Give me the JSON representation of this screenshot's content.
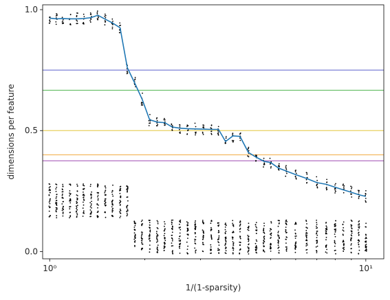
{
  "chart_data": {
    "type": "line",
    "title": "",
    "xlabel": "1/(1-sparsity)",
    "ylabel": "dimensions per feature",
    "xscale": "log",
    "xlim": [
      0.95,
      11.4
    ],
    "ylim": [
      -0.03,
      1.02
    ],
    "grid": false,
    "legend": "none",
    "x_ticks": [
      {
        "value": 1,
        "label": "10⁰"
      },
      {
        "value": 10,
        "label": "10¹"
      }
    ],
    "y_ticks": [
      {
        "value": 0.0,
        "label": "0.0"
      },
      {
        "value": 0.5,
        "label": "0.5"
      },
      {
        "value": 1.0,
        "label": "1.0"
      }
    ],
    "hlines": [
      {
        "y": 0.75,
        "color": "#7b7fd6"
      },
      {
        "y": 0.6667,
        "color": "#6cc06c"
      },
      {
        "y": 0.5,
        "color": "#e8d060"
      },
      {
        "y": 0.4,
        "color": "#f4b860"
      },
      {
        "y": 0.375,
        "color": "#b06cc0"
      }
    ],
    "series": [
      {
        "color": "#1f77b4",
        "x": [
          1.0,
          1.05,
          1.1,
          1.16,
          1.22,
          1.28,
          1.35,
          1.42,
          1.5,
          1.58,
          1.67,
          1.76,
          1.86,
          1.96,
          2.07,
          2.19,
          2.31,
          2.44,
          2.58,
          2.73,
          2.89,
          3.06,
          3.24,
          3.42,
          3.6,
          3.8,
          4.0,
          4.25,
          4.5,
          4.76,
          5.0,
          5.3,
          5.6,
          6.0,
          6.5,
          7.0,
          7.5,
          8.0,
          8.5,
          9.0,
          9.5,
          10.0
        ],
        "y": [
          0.965,
          0.962,
          0.963,
          0.962,
          0.962,
          0.963,
          0.967,
          0.977,
          0.96,
          0.945,
          0.925,
          0.76,
          0.695,
          0.63,
          0.545,
          0.535,
          0.533,
          0.515,
          0.51,
          0.508,
          0.507,
          0.506,
          0.505,
          0.505,
          0.455,
          0.478,
          0.476,
          0.41,
          0.39,
          0.373,
          0.368,
          0.345,
          0.333,
          0.318,
          0.302,
          0.285,
          0.278,
          0.266,
          0.255,
          0.245,
          0.235,
          0.228
        ]
      }
    ]
  }
}
